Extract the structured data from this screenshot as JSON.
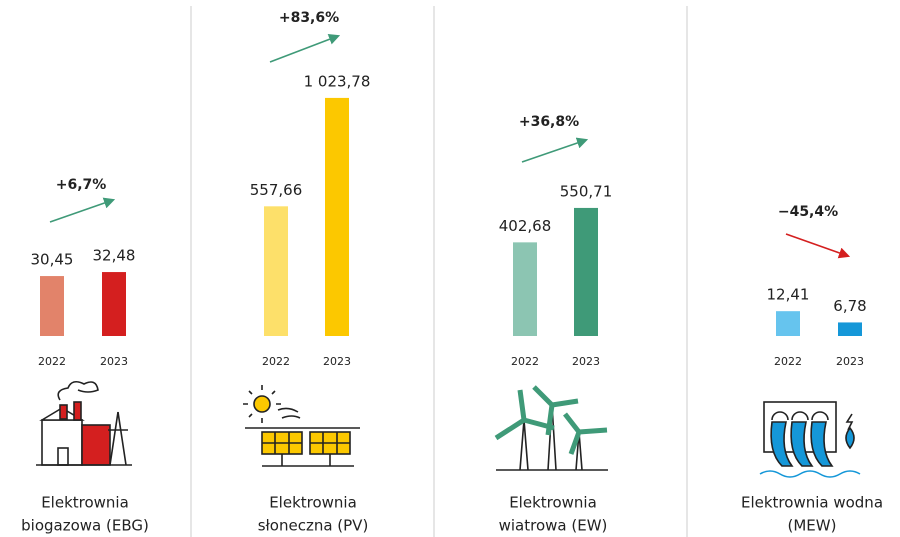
{
  "chart_data": [
    {
      "type": "bar",
      "title": [
        "Elektrownia",
        "biogazowa (EBG)"
      ],
      "categories": [
        "2022",
        "2023"
      ],
      "values": [
        30.45,
        32.48
      ],
      "value_labels": [
        "30,45",
        "32,48"
      ],
      "colors": [
        "#e2836a",
        "#d41f1f"
      ],
      "change": "+6,7%",
      "arrow_color": "#3f9a78",
      "ylim": [
        0,
        127
      ]
    },
    {
      "type": "bar",
      "title": [
        "Elektrownia",
        "słoneczna (PV)"
      ],
      "categories": [
        "2022",
        "2023"
      ],
      "values": [
        557.66,
        1023.78
      ],
      "value_labels": [
        "557,66",
        "1 023,78"
      ],
      "colors": [
        "#fde06a",
        "#fcc800"
      ],
      "change": "+83,6%",
      "arrow_color": "#3f9a78",
      "ylim": [
        0,
        1075
      ]
    },
    {
      "type": "bar",
      "title": [
        "Elektrownia",
        "wiatrowa (EW)"
      ],
      "categories": [
        "2022",
        "2023"
      ],
      "values": [
        402.68,
        550.71
      ],
      "value_labels": [
        "402,68",
        "550,71"
      ],
      "colors": [
        "#8cc5b2",
        "#3f9a78"
      ],
      "change": "+36,8%",
      "arrow_color": "#3f9a78",
      "ylim": [
        0,
        1075
      ]
    },
    {
      "type": "bar",
      "title": [
        "Elektrownia wodna",
        "(MEW)"
      ],
      "categories": [
        "2022",
        "2023"
      ],
      "values": [
        12.41,
        6.78
      ],
      "value_labels": [
        "12,41",
        "6,78"
      ],
      "colors": [
        "#66c4ee",
        "#1597d8"
      ],
      "change": "−45,4%",
      "arrow_color": "#d41f1f",
      "ylim": [
        0,
        125
      ]
    }
  ]
}
